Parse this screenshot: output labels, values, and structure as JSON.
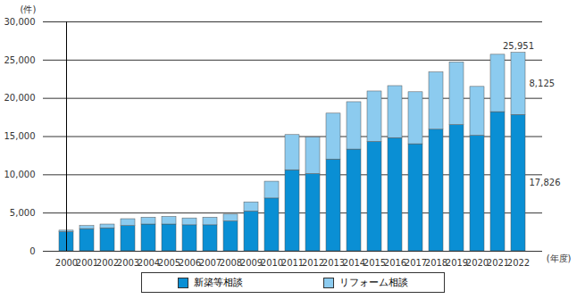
{
  "chart_data": {
    "type": "bar",
    "stacked": true,
    "y_label": "(件)",
    "x_label": "(年度)",
    "categories": [
      "2000",
      "2001",
      "2002",
      "2003",
      "2004",
      "2005",
      "2006",
      "2007",
      "2008",
      "2009",
      "2010",
      "2011",
      "2012",
      "2013",
      "2014",
      "2015",
      "2016",
      "2017",
      "2018",
      "2019",
      "2020",
      "2021",
      "2022"
    ],
    "series": [
      {
        "name": "新築等相談",
        "color": "#0a8fd4",
        "values": [
          2500,
          2900,
          3000,
          3300,
          3500,
          3500,
          3400,
          3400,
          3900,
          5200,
          6900,
          10600,
          10100,
          12000,
          13300,
          14300,
          14800,
          14000,
          15900,
          16500,
          15100,
          18200,
          17826
        ]
      },
      {
        "name": "リフォーム相談",
        "color": "#8ccbef",
        "values": [
          200,
          400,
          500,
          900,
          900,
          1000,
          900,
          1000,
          900,
          1200,
          2200,
          4600,
          4800,
          6000,
          6200,
          6600,
          6800,
          6800,
          7500,
          8200,
          6400,
          7500,
          8125
        ]
      }
    ],
    "annotations": [
      {
        "category": "2022",
        "text": "25,951"
      },
      {
        "category": "2022",
        "series": "リフォーム相談",
        "text": "8,125"
      },
      {
        "category": "2022",
        "series": "新築等相談",
        "text": "17,826"
      }
    ],
    "ylim": [
      0,
      30000
    ],
    "yticks": [
      0,
      {
        "value": 5000,
        "label": "5,000"
      },
      {
        "value": 10000,
        "label": "10,000"
      },
      {
        "value": 15000,
        "label": "15,000"
      },
      {
        "value": 20000,
        "label": "20,000"
      },
      {
        "value": 25000,
        "label": "25,000"
      },
      {
        "value": 30000,
        "label": "30,000"
      }
    ],
    "grid": true,
    "legend": "bottom"
  }
}
